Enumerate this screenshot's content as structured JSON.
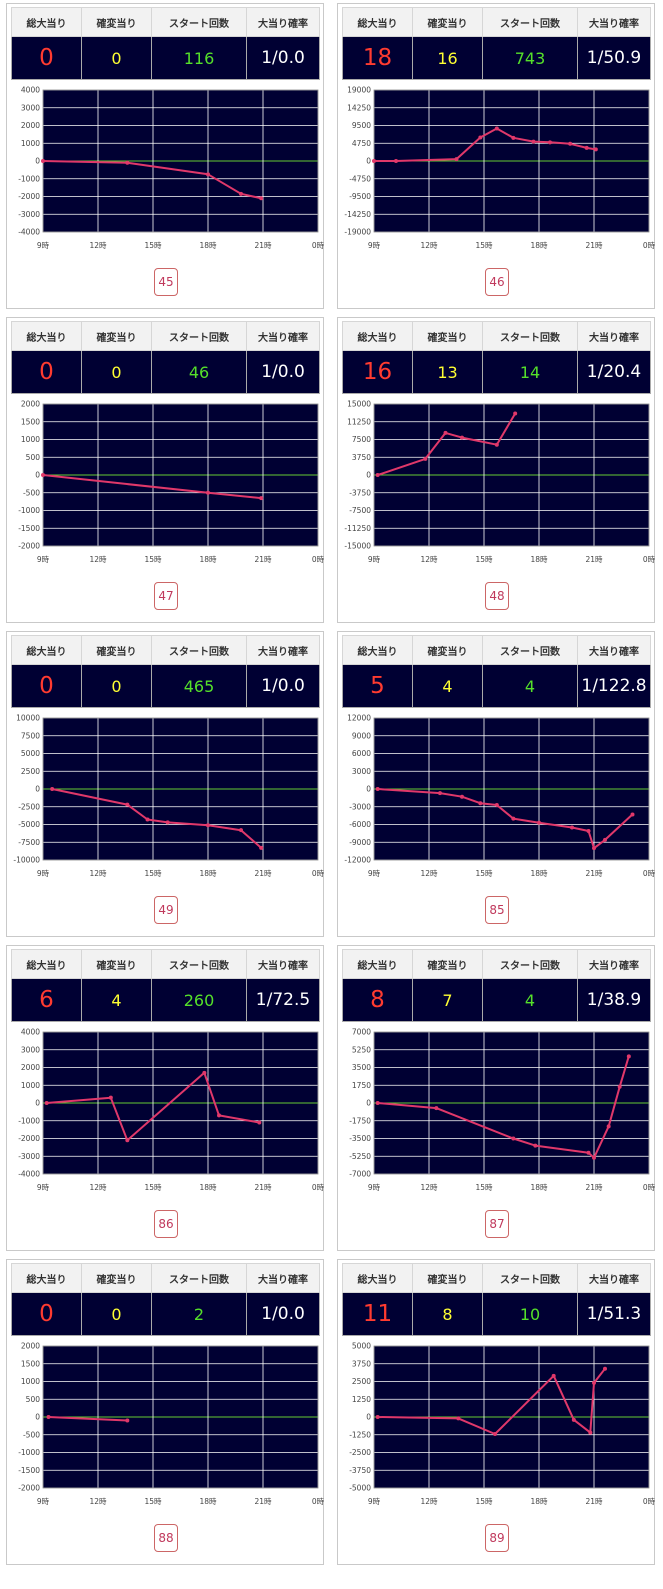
{
  "headers": {
    "total": "総大当り",
    "kakuhen": "確変当り",
    "start": "スタート回数",
    "rate": "大当り確率"
  },
  "colors": {
    "plot_bg": "#000033",
    "grid": "#ffffff",
    "zero_line": "#66cc33",
    "series": "#e0386a",
    "total": "#ff3b30",
    "kakuhen": "#ffff33",
    "start": "#55e02a",
    "rate": "#ffffff"
  },
  "machines": [
    {
      "number": "45",
      "total": "0",
      "kakuhen": "0",
      "start": "116",
      "rate": "1/0.0"
    },
    {
      "number": "46",
      "total": "18",
      "kakuhen": "16",
      "start": "743",
      "rate": "1/50.9"
    },
    {
      "number": "47",
      "total": "0",
      "kakuhen": "0",
      "start": "46",
      "rate": "1/0.0"
    },
    {
      "number": "48",
      "total": "16",
      "kakuhen": "13",
      "start": "14",
      "rate": "1/20.4"
    },
    {
      "number": "49",
      "total": "0",
      "kakuhen": "0",
      "start": "465",
      "rate": "1/0.0"
    },
    {
      "number": "85",
      "total": "5",
      "kakuhen": "4",
      "start": "4",
      "rate": "1/122.8"
    },
    {
      "number": "86",
      "total": "6",
      "kakuhen": "4",
      "start": "260",
      "rate": "1/72.5"
    },
    {
      "number": "87",
      "total": "8",
      "kakuhen": "7",
      "start": "4",
      "rate": "1/38.9"
    },
    {
      "number": "88",
      "total": "0",
      "kakuhen": "0",
      "start": "2",
      "rate": "1/0.0"
    },
    {
      "number": "89",
      "total": "11",
      "kakuhen": "8",
      "start": "10",
      "rate": "1/51.3"
    }
  ],
  "chart_data": [
    {
      "type": "line",
      "title": "45",
      "x_ticks": [
        "9時",
        "12時",
        "15時",
        "18時",
        "21時",
        "0時"
      ],
      "xlim": [
        9,
        24
      ],
      "y_ticks": [
        "4000",
        "3000",
        "2000",
        "1000",
        "0",
        "-1000",
        "-2000",
        "-3000",
        "-4000"
      ],
      "ylim": [
        -4000,
        4000
      ],
      "x": [
        9.0,
        13.6,
        18.0,
        19.8,
        20.9
      ],
      "y": [
        0,
        -100,
        -750,
        -1850,
        -2100
      ]
    },
    {
      "type": "line",
      "title": "46",
      "x_ticks": [
        "9時",
        "12時",
        "15時",
        "18時",
        "21時",
        "0時"
      ],
      "xlim": [
        9,
        24
      ],
      "y_ticks": [
        "19000",
        "14250",
        "9500",
        "4750",
        "0",
        "-4750",
        "-9500",
        "-14250",
        "-19000"
      ],
      "ylim": [
        -19000,
        19000
      ],
      "x": [
        9.0,
        10.2,
        13.5,
        14.8,
        15.7,
        16.6,
        17.7,
        18.6,
        19.7,
        20.6,
        21.1
      ],
      "y": [
        0,
        0,
        500,
        6300,
        8700,
        6200,
        5200,
        5000,
        4600,
        3500,
        3100
      ]
    },
    {
      "type": "line",
      "title": "47",
      "x_ticks": [
        "9時",
        "12時",
        "15時",
        "18時",
        "21時",
        "0時"
      ],
      "xlim": [
        9,
        24
      ],
      "y_ticks": [
        "2000",
        "1500",
        "1000",
        "500",
        "0",
        "-500",
        "-1000",
        "-1500",
        "-2000"
      ],
      "ylim": [
        -2000,
        2000
      ],
      "x": [
        9.0,
        18.0,
        20.9
      ],
      "y": [
        0,
        -500,
        -650
      ]
    },
    {
      "type": "line",
      "title": "48",
      "x_ticks": [
        "9時",
        "12時",
        "15時",
        "18時",
        "21時",
        "0時"
      ],
      "xlim": [
        9,
        24
      ],
      "y_ticks": [
        "15000",
        "11250",
        "7500",
        "3750",
        "0",
        "-3750",
        "-7500",
        "-11250",
        "-15000"
      ],
      "ylim": [
        -15000,
        15000
      ],
      "x": [
        9.2,
        11.8,
        12.9,
        13.8,
        15.7,
        16.7
      ],
      "y": [
        0,
        3400,
        8900,
        7900,
        6400,
        13000
      ]
    },
    {
      "type": "line",
      "title": "49",
      "x_ticks": [
        "9時",
        "12時",
        "15時",
        "18時",
        "21時",
        "0時"
      ],
      "xlim": [
        9,
        24
      ],
      "y_ticks": [
        "10000",
        "7500",
        "5000",
        "2500",
        "0",
        "-2500",
        "-5000",
        "-7500",
        "-10000"
      ],
      "ylim": [
        -10000,
        10000
      ],
      "x": [
        9.5,
        13.6,
        14.7,
        15.8,
        18.0,
        19.8,
        20.9
      ],
      "y": [
        0,
        -2200,
        -4300,
        -4700,
        -5100,
        -5800,
        -8300
      ]
    },
    {
      "type": "line",
      "title": "85",
      "x_ticks": [
        "9時",
        "12時",
        "15時",
        "18時",
        "21時",
        "0時"
      ],
      "xlim": [
        9,
        24
      ],
      "y_ticks": [
        "12000",
        "9000",
        "6000",
        "3000",
        "0",
        "-3000",
        "-6000",
        "-9000",
        "-12000"
      ],
      "ylim": [
        -12000,
        12000
      ],
      "x": [
        9.2,
        12.6,
        13.8,
        14.8,
        15.7,
        16.6,
        18.0,
        19.8,
        20.7,
        21.0,
        21.6,
        23.1
      ],
      "y": [
        0,
        -700,
        -1300,
        -2400,
        -2700,
        -5000,
        -5700,
        -6500,
        -7100,
        -10000,
        -8600,
        -4300
      ]
    },
    {
      "type": "line",
      "title": "86",
      "x_ticks": [
        "9時",
        "12時",
        "15時",
        "18時",
        "21時",
        "0時"
      ],
      "xlim": [
        9,
        24
      ],
      "y_ticks": [
        "4000",
        "3000",
        "2000",
        "1000",
        "0",
        "-1000",
        "-2000",
        "-3000",
        "-4000"
      ],
      "ylim": [
        -4000,
        4000
      ],
      "x": [
        9.2,
        12.7,
        13.6,
        17.8,
        18.6,
        20.8
      ],
      "y": [
        0,
        300,
        -2100,
        1700,
        -700,
        -1100
      ]
    },
    {
      "type": "line",
      "title": "87",
      "x_ticks": [
        "9時",
        "12時",
        "15時",
        "18時",
        "21時",
        "0時"
      ],
      "xlim": [
        9,
        24
      ],
      "y_ticks": [
        "7000",
        "5250",
        "3500",
        "1750",
        "0",
        "-1750",
        "-3500",
        "-5250",
        "-7000"
      ],
      "ylim": [
        -7000,
        7000
      ],
      "x": [
        9.2,
        12.4,
        16.6,
        17.8,
        20.7,
        21.0,
        21.8,
        22.4,
        22.9
      ],
      "y": [
        0,
        -500,
        -3500,
        -4200,
        -4900,
        -5400,
        -2300,
        1600,
        4600
      ]
    },
    {
      "type": "line",
      "title": "88",
      "x_ticks": [
        "9時",
        "12時",
        "15時",
        "18時",
        "21時",
        "0時"
      ],
      "xlim": [
        9,
        24
      ],
      "y_ticks": [
        "2000",
        "1500",
        "1000",
        "500",
        "0",
        "-500",
        "-1000",
        "-1500",
        "-2000"
      ],
      "ylim": [
        -2000,
        2000
      ],
      "x": [
        9.3,
        13.6
      ],
      "y": [
        0,
        -100
      ]
    },
    {
      "type": "line",
      "title": "89",
      "x_ticks": [
        "9時",
        "12時",
        "15時",
        "18時",
        "21時",
        "0時"
      ],
      "xlim": [
        9,
        24
      ],
      "y_ticks": [
        "5000",
        "3750",
        "2500",
        "1250",
        "0",
        "-1250",
        "-2500",
        "-3750",
        "-5000"
      ],
      "ylim": [
        -5000,
        5000
      ],
      "x": [
        9.2,
        13.6,
        15.6,
        18.8,
        19.9,
        20.8,
        21.0,
        21.6
      ],
      "y": [
        0,
        -100,
        -1200,
        2900,
        -200,
        -1100,
        2400,
        3400
      ]
    }
  ]
}
